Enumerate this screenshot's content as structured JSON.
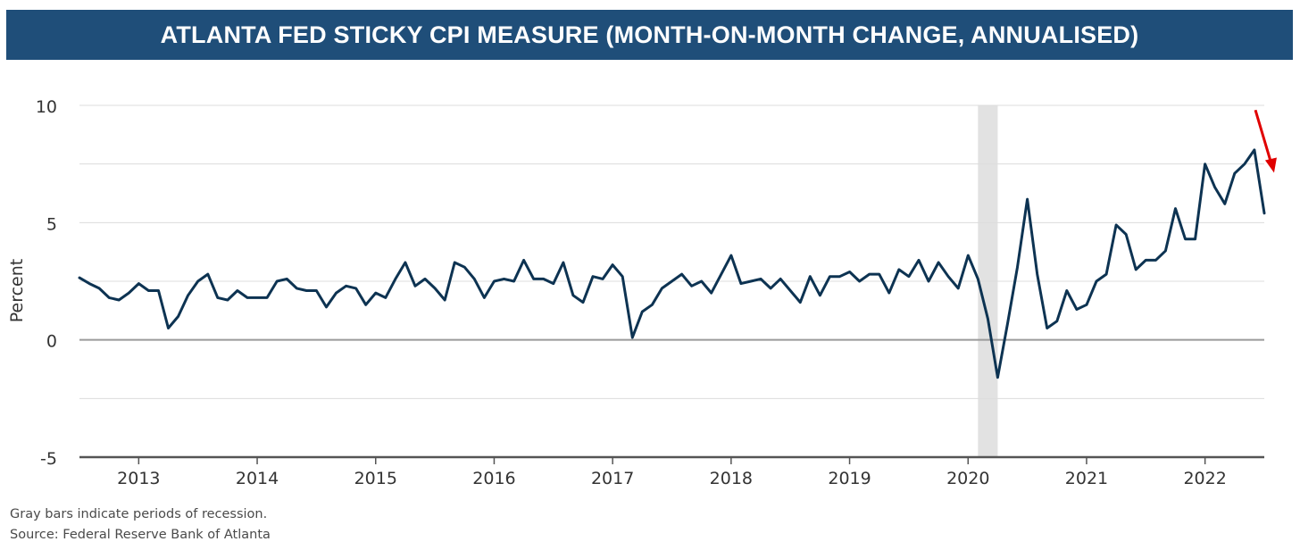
{
  "header": {
    "title": "ATLANTA FED STICKY CPI MEASURE (MONTH-ON-MONTH CHANGE, ANNUALISED)",
    "background_color": "#1f4e79"
  },
  "footer": {
    "note": "Gray bars indicate periods of recession.",
    "source": "Source: Federal Reserve Bank of Atlanta"
  },
  "chart_data": {
    "type": "line",
    "title": "ATLANTA FED STICKY CPI MEASURE (MONTH-ON-MONTH CHANGE, ANNUALISED)",
    "xlabel": "",
    "ylabel": "Percent",
    "ylim": [
      -5,
      10
    ],
    "xlim": [
      "2012-07",
      "2022-07"
    ],
    "yticks": [
      10,
      5,
      0,
      -5
    ],
    "xticks": [
      "2013",
      "2014",
      "2015",
      "2016",
      "2017",
      "2018",
      "2019",
      "2020",
      "2021",
      "2022"
    ],
    "grid": true,
    "line_color": "#0d3352",
    "recession_shading": [
      {
        "start": "2020-02",
        "end": "2020-04",
        "color": "#e2e2e2"
      }
    ],
    "annotation": {
      "type": "arrow",
      "color": "#e00000",
      "meaning": "recent decline"
    },
    "series": [
      {
        "x": [
          "2012-07",
          "2012-08",
          "2012-09",
          "2012-10",
          "2012-11",
          "2012-12",
          "2013-01",
          "2013-02",
          "2013-03",
          "2013-04",
          "2013-05",
          "2013-06",
          "2013-07",
          "2013-08",
          "2013-09",
          "2013-10",
          "2013-11",
          "2013-12",
          "2014-01",
          "2014-02",
          "2014-03",
          "2014-04",
          "2014-05",
          "2014-06",
          "2014-07",
          "2014-08",
          "2014-09",
          "2014-10",
          "2014-11",
          "2014-12",
          "2015-01",
          "2015-02",
          "2015-03",
          "2015-04",
          "2015-05",
          "2015-06",
          "2015-07",
          "2015-08",
          "2015-09",
          "2015-10",
          "2015-11",
          "2015-12",
          "2016-01",
          "2016-02",
          "2016-03",
          "2016-04",
          "2016-05",
          "2016-06",
          "2016-07",
          "2016-08",
          "2016-09",
          "2016-10",
          "2016-11",
          "2016-12",
          "2017-01",
          "2017-02",
          "2017-03",
          "2017-04",
          "2017-05",
          "2017-06",
          "2017-07",
          "2017-08",
          "2017-09",
          "2017-10",
          "2017-11",
          "2017-12",
          "2018-01",
          "2018-02",
          "2018-03",
          "2018-04",
          "2018-05",
          "2018-06",
          "2018-07",
          "2018-08",
          "2018-09",
          "2018-10",
          "2018-11",
          "2018-12",
          "2019-01",
          "2019-02",
          "2019-03",
          "2019-04",
          "2019-05",
          "2019-06",
          "2019-07",
          "2019-08",
          "2019-09",
          "2019-10",
          "2019-11",
          "2019-12",
          "2020-01",
          "2020-02",
          "2020-03",
          "2020-04",
          "2020-05",
          "2020-06",
          "2020-07",
          "2020-08",
          "2020-09",
          "2020-10",
          "2020-11",
          "2020-12",
          "2021-01",
          "2021-02",
          "2021-03",
          "2021-04",
          "2021-05",
          "2021-06",
          "2021-07",
          "2021-08",
          "2021-09",
          "2021-10",
          "2021-11",
          "2021-12",
          "2022-01",
          "2022-02",
          "2022-03",
          "2022-04",
          "2022-05",
          "2022-06",
          "2022-07"
        ],
        "values": [
          2.65,
          2.4,
          2.2,
          1.8,
          1.7,
          2.0,
          2.4,
          2.1,
          2.1,
          0.5,
          1.0,
          1.9,
          2.5,
          2.8,
          1.8,
          1.7,
          2.1,
          1.8,
          1.8,
          1.8,
          2.5,
          2.6,
          2.2,
          2.1,
          2.1,
          1.4,
          2.0,
          2.3,
          2.2,
          1.5,
          2.0,
          1.8,
          2.6,
          3.3,
          2.3,
          2.6,
          2.2,
          1.7,
          3.3,
          3.1,
          2.6,
          1.8,
          2.5,
          2.6,
          2.5,
          3.4,
          2.6,
          2.6,
          2.4,
          3.3,
          1.9,
          1.6,
          2.7,
          2.6,
          3.2,
          2.7,
          0.1,
          1.2,
          1.5,
          2.2,
          2.5,
          2.8,
          2.3,
          2.5,
          2.0,
          2.8,
          3.6,
          2.4,
          2.5,
          2.6,
          2.2,
          2.6,
          2.1,
          1.6,
          2.7,
          1.9,
          2.7,
          2.7,
          2.9,
          2.5,
          2.8,
          2.8,
          2.0,
          3.0,
          2.7,
          3.4,
          2.5,
          3.3,
          2.7,
          2.2,
          3.6,
          2.6,
          0.9,
          -1.6,
          0.7,
          3.1,
          6.0,
          2.8,
          0.5,
          0.8,
          2.1,
          1.3,
          1.5,
          2.5,
          2.8,
          4.9,
          4.5,
          3.0,
          3.4,
          3.4,
          3.8,
          5.6,
          4.3,
          4.3,
          7.5,
          6.5,
          5.8,
          7.1,
          7.5,
          8.1,
          5.4
        ]
      }
    ]
  }
}
